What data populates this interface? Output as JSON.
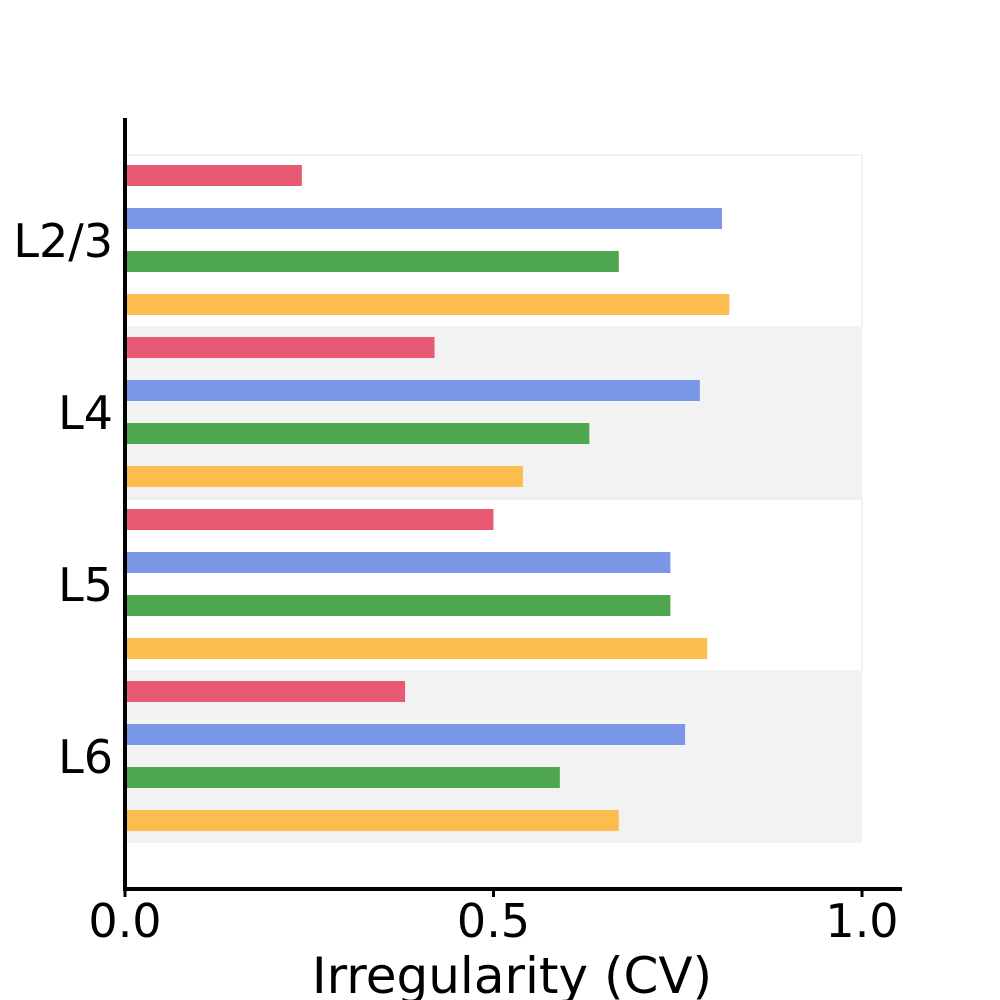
{
  "chart_data": {
    "type": "bar",
    "orientation": "horizontal",
    "title": "",
    "xlabel": "Irregularity (CV)",
    "ylabel": "",
    "xlim": [
      0,
      1.05
    ],
    "xticks": [
      "0.0",
      "0.5",
      "1.0"
    ],
    "categories": [
      "L2/3",
      "L4",
      "L5",
      "L6"
    ],
    "series": [
      {
        "color": "#e85a74",
        "values": [
          0.24,
          0.42,
          0.5,
          0.38
        ]
      },
      {
        "color": "#7a96e6",
        "values": [
          0.81,
          0.78,
          0.74,
          0.76
        ]
      },
      {
        "color": "#4ea64e",
        "values": [
          0.67,
          0.63,
          0.74,
          0.59
        ]
      },
      {
        "color": "#fdbc4e",
        "values": [
          0.82,
          0.54,
          0.79,
          0.67
        ]
      }
    ],
    "group_backgrounds": [
      "#ffffff",
      "#f2f2f2",
      "#ffffff",
      "#f2f2f2"
    ],
    "grid": false,
    "legend": "none"
  }
}
